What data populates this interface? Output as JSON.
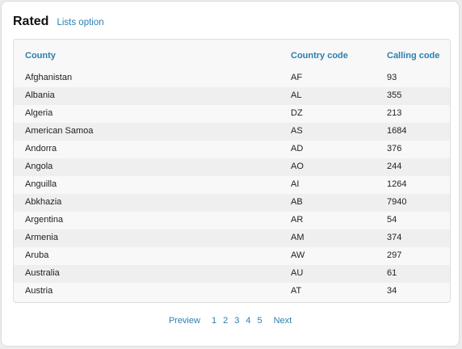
{
  "header": {
    "title": "Rated",
    "lists_option": "Lists option"
  },
  "table": {
    "columns": [
      "County",
      "Country code",
      "Calling code"
    ],
    "rows": [
      [
        "Afghanistan",
        "AF",
        "93"
      ],
      [
        "Albania",
        "AL",
        "355"
      ],
      [
        "Algeria",
        "DZ",
        "213"
      ],
      [
        "American Samoa",
        "AS",
        "1684"
      ],
      [
        "Andorra",
        "AD",
        "376"
      ],
      [
        "Angola",
        "AO",
        "244"
      ],
      [
        "Anguilla",
        "AI",
        "1264"
      ],
      [
        "Abkhazia",
        "AB",
        "7940"
      ],
      [
        "Argentina",
        "AR",
        "54"
      ],
      [
        "Armenia",
        "AM",
        "374"
      ],
      [
        "Aruba",
        "AW",
        "297"
      ],
      [
        "Australia",
        "AU",
        "61"
      ],
      [
        "Austria",
        "AT",
        "34"
      ]
    ]
  },
  "pagination": {
    "prev": "Preview",
    "pages": [
      "1",
      "2",
      "3",
      "4",
      "5"
    ],
    "next": "Next"
  },
  "colors": {
    "accent": "#2c7fb0",
    "row_alt": "#efefef",
    "row": "#f8f8f8"
  }
}
